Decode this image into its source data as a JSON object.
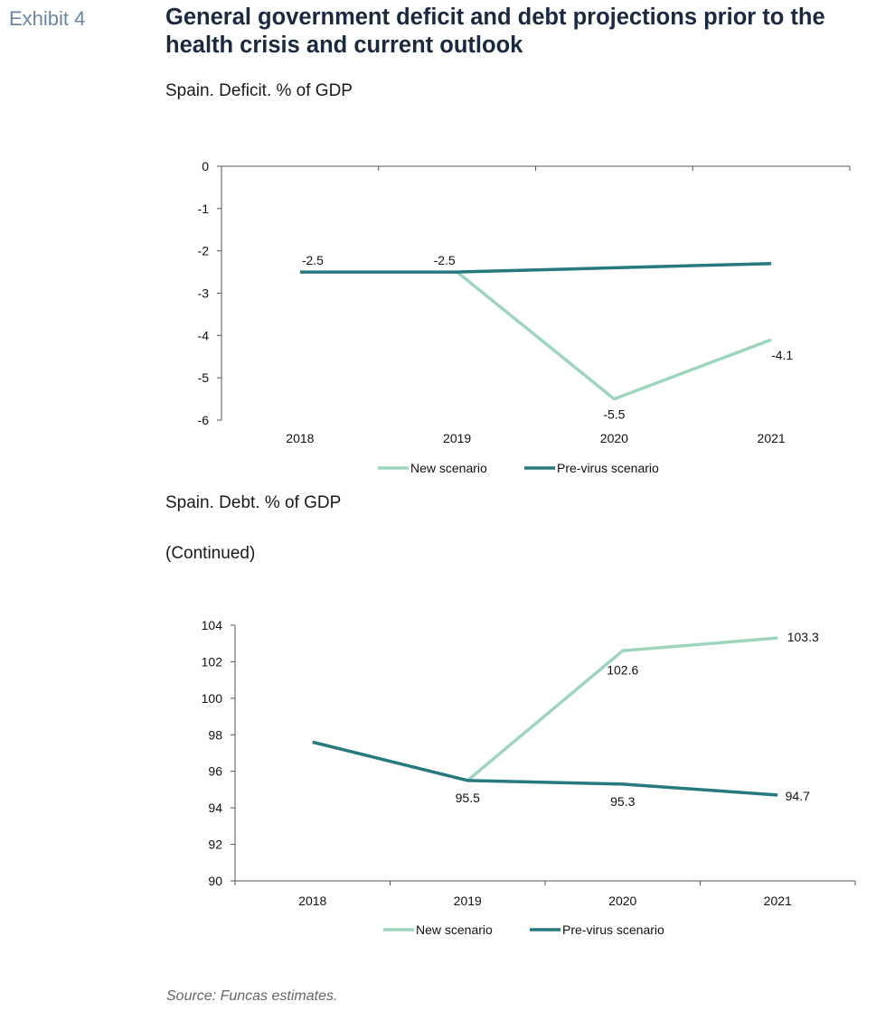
{
  "header": {
    "exhibit_label": "Exhibit 4",
    "title": "General government deficit and debt projections prior to the health crisis and current outlook"
  },
  "colors": {
    "new_scenario": "#9dd5bd",
    "pre_virus": "#25797f",
    "axis": "#555555"
  },
  "footer": {
    "source": "Source: Funcas estimates."
  },
  "chart_data": [
    {
      "type": "line",
      "title": "Spain. Deficit. % of GDP",
      "categories": [
        "2018",
        "2019",
        "2020",
        "2021"
      ],
      "ylim": [
        -6,
        0
      ],
      "yticks": [
        "0",
        "-1",
        "-2",
        "-3",
        "-4",
        "-5",
        "-6"
      ],
      "series": [
        {
          "name": "New scenario",
          "values": [
            null,
            -2.5,
            -5.5,
            -4.1
          ]
        },
        {
          "name": "Pre-virus scenario",
          "values": [
            -2.5,
            -2.5,
            -2.4,
            -2.3
          ]
        }
      ],
      "data_labels": [
        {
          "series": 1,
          "index": 0,
          "text": "-2.5"
        },
        {
          "series": 1,
          "index": 1,
          "text": "-2.5"
        },
        {
          "series": 0,
          "index": 2,
          "text": "-5.5"
        },
        {
          "series": 0,
          "index": 3,
          "text": "-4.1"
        }
      ],
      "legend": "bottom",
      "grid": false
    },
    {
      "type": "line",
      "title": "Spain. Debt. % of GDP",
      "note": "(Continued)",
      "categories": [
        "2018",
        "2019",
        "2020",
        "2021"
      ],
      "ylim": [
        90,
        104
      ],
      "yticks": [
        "104",
        "102",
        "100",
        "98",
        "96",
        "94",
        "92",
        "90"
      ],
      "series": [
        {
          "name": "New scenario",
          "values": [
            null,
            95.5,
            102.6,
            103.3
          ]
        },
        {
          "name": "Pre-virus scenario",
          "values": [
            97.6,
            95.5,
            95.3,
            94.7
          ]
        }
      ],
      "data_labels": [
        {
          "series": 1,
          "index": 1,
          "text": "95.5"
        },
        {
          "series": 1,
          "index": 2,
          "text": "95.3"
        },
        {
          "series": 1,
          "index": 3,
          "text": "94.7"
        },
        {
          "series": 0,
          "index": 2,
          "text": "102.6"
        },
        {
          "series": 0,
          "index": 3,
          "text": "103.3"
        }
      ],
      "legend": "bottom",
      "grid": false
    }
  ]
}
